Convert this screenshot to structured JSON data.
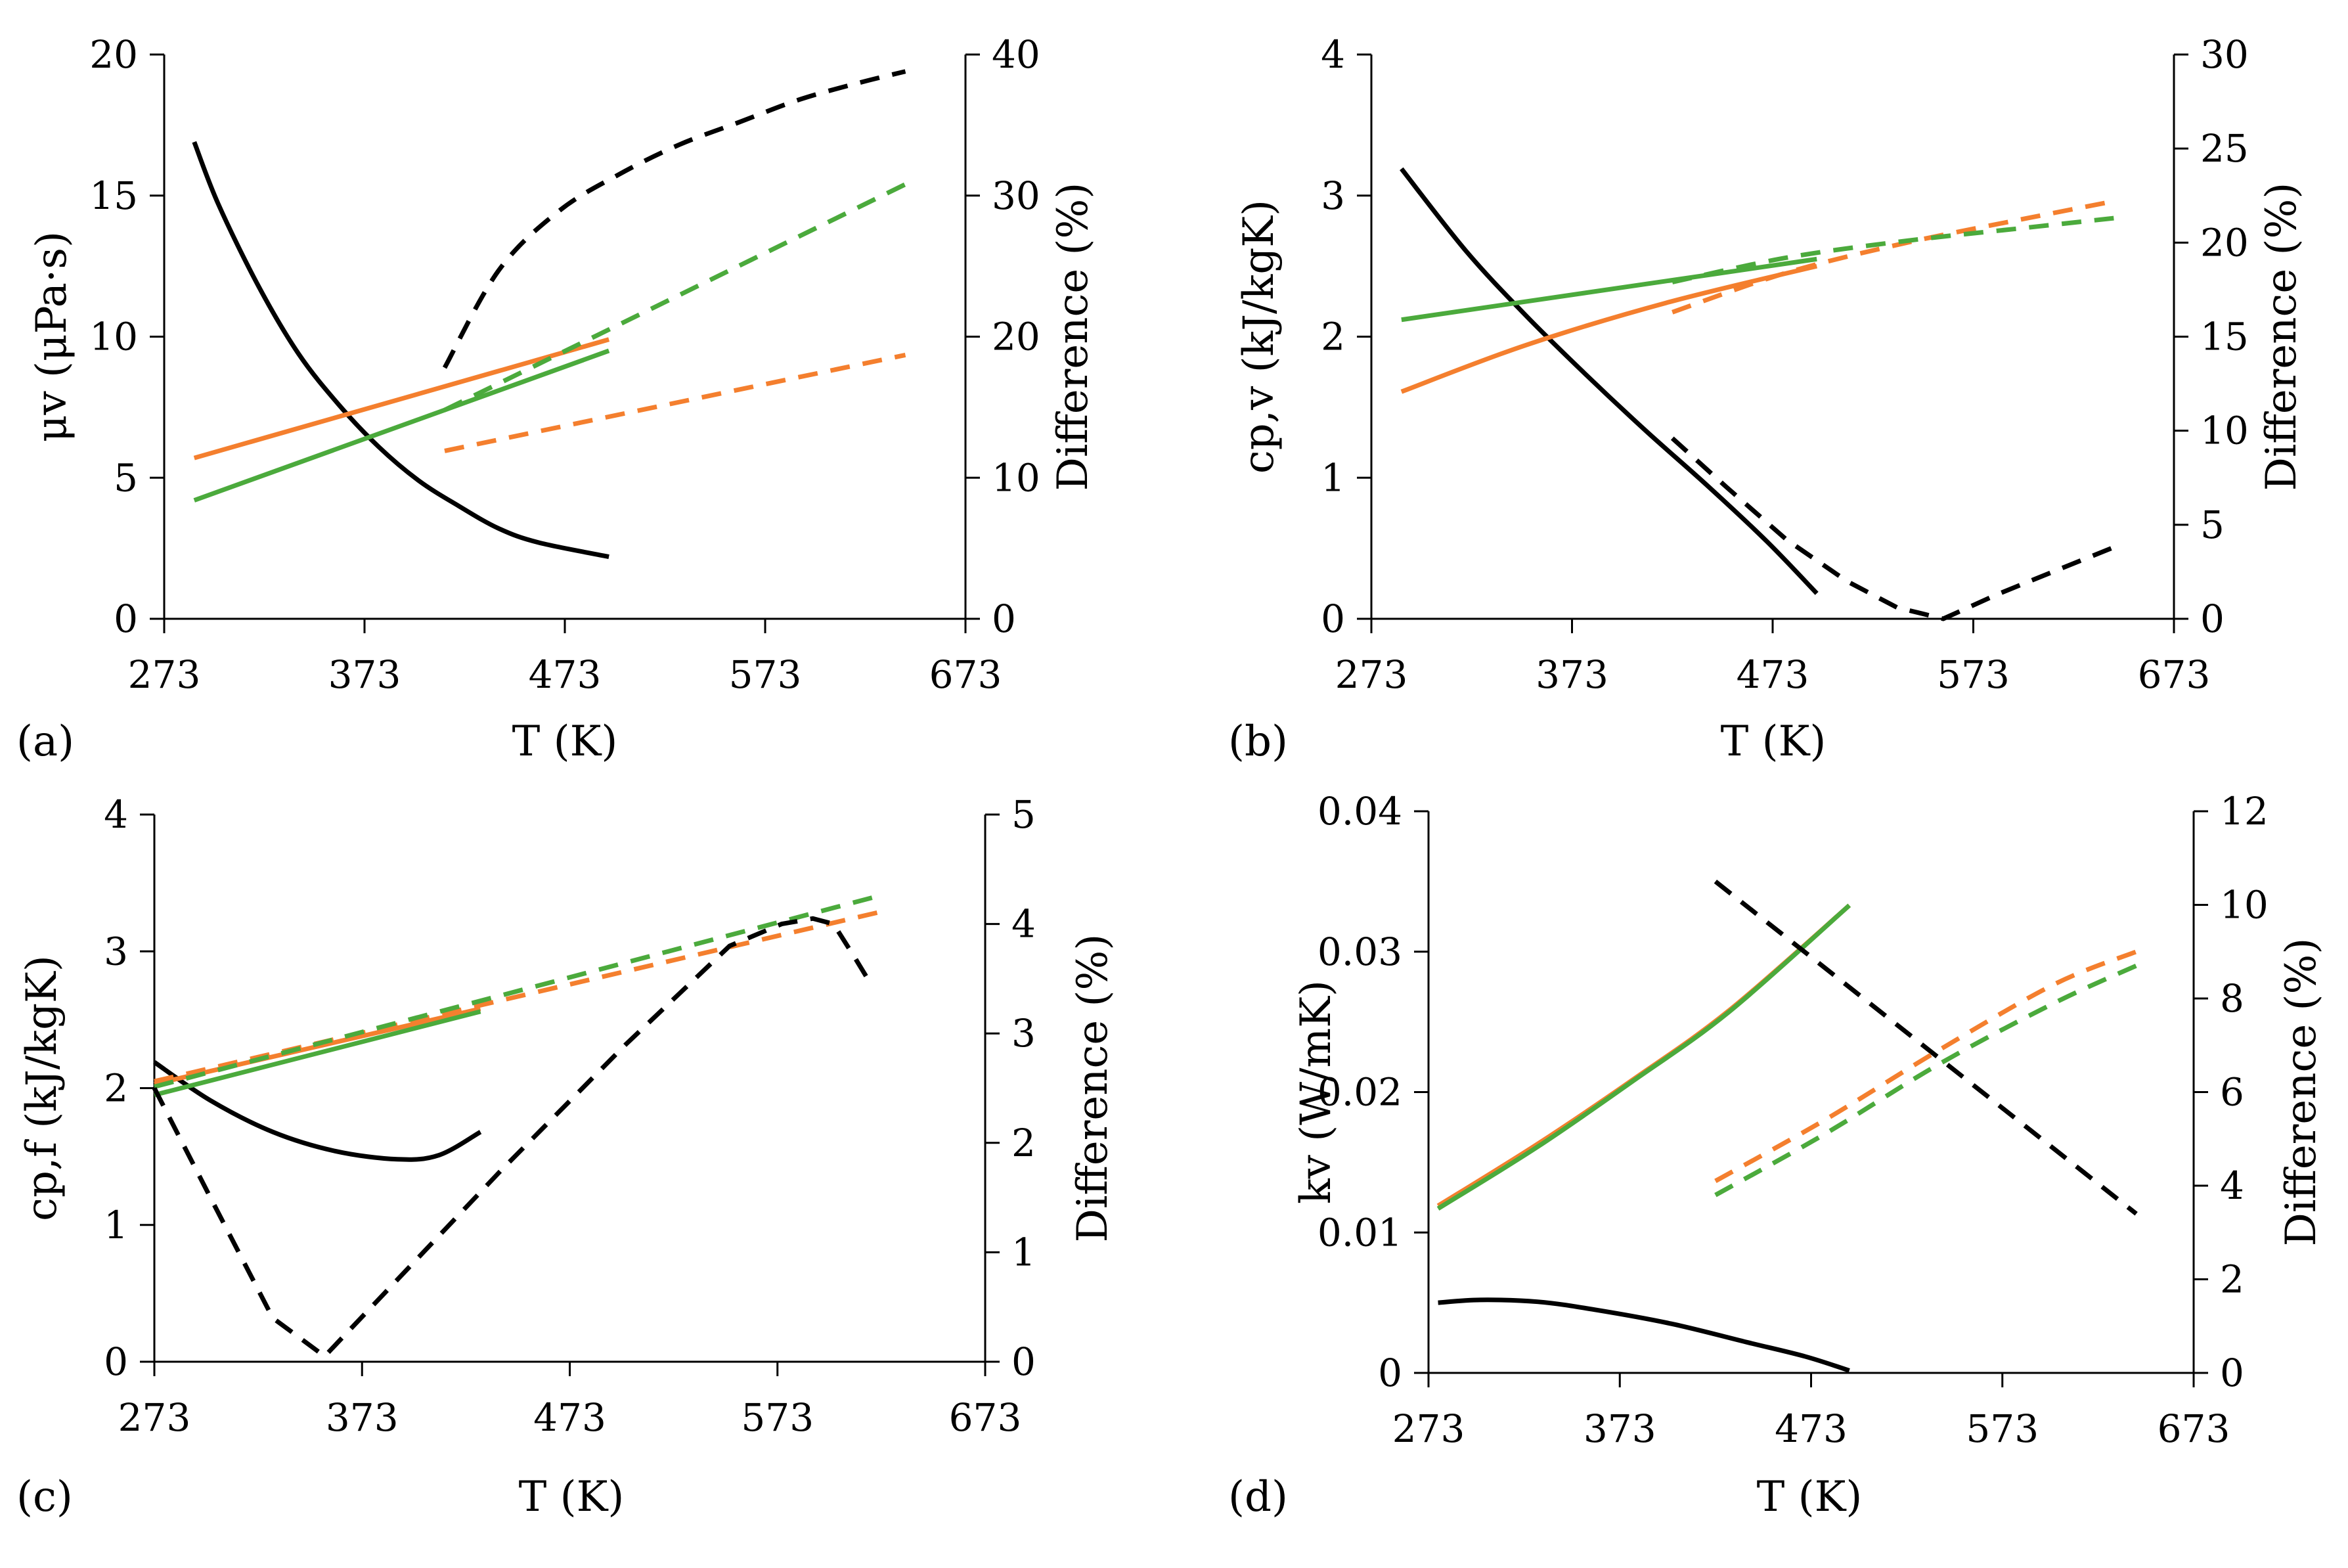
{
  "colors": {
    "black": "#000000",
    "orange": "#F47F2E",
    "green": "#4BAA3C"
  },
  "chart_data": [
    {
      "type": "line",
      "panel": "(a)",
      "panel_letter": "a",
      "xlabel": "T (K)",
      "ylabel": "μv (μPa·s)",
      "y2label": "Difference (%)",
      "xlim": [
        273,
        673
      ],
      "ylim": [
        0,
        20
      ],
      "y2lim": [
        0,
        40
      ],
      "xticks": [
        "273",
        "373",
        "473",
        "573",
        "673"
      ],
      "yticks": [
        "0",
        "5",
        "10",
        "15",
        "20"
      ],
      "y2ticks": [
        "0",
        "10",
        "20",
        "30",
        "40"
      ],
      "series": [
        {
          "name": "black-solid",
          "color": "black",
          "dash": false,
          "axis": "left",
          "curve": true,
          "points": [
            [
              288,
              16.9
            ],
            [
              300,
              14.7
            ],
            [
              320,
              11.8
            ],
            [
              340,
              9.4
            ],
            [
              360,
              7.6
            ],
            [
              380,
              6.1
            ],
            [
              400,
              4.9
            ],
            [
              420,
              4.0
            ],
            [
              440,
              3.2
            ],
            [
              460,
              2.7
            ],
            [
              495,
              2.2
            ]
          ]
        },
        {
          "name": "orange-solid",
          "color": "orange",
          "dash": false,
          "axis": "left",
          "curve": false,
          "points": [
            [
              288,
              5.7
            ],
            [
              495,
              9.9
            ]
          ]
        },
        {
          "name": "green-solid",
          "color": "green",
          "dash": false,
          "axis": "left",
          "curve": false,
          "points": [
            [
              288,
              4.2
            ],
            [
              495,
              9.5
            ]
          ]
        },
        {
          "name": "black-dashed",
          "color": "black",
          "dash": true,
          "axis": "right",
          "curve": true,
          "points": [
            [
              413,
              17.8
            ],
            [
              440,
              24.7
            ],
            [
              470,
              28.9
            ],
            [
              500,
              31.5
            ],
            [
              530,
              33.6
            ],
            [
              560,
              35.2
            ],
            [
              590,
              36.8
            ],
            [
              620,
              38.0
            ],
            [
              643,
              38.8
            ]
          ]
        },
        {
          "name": "green-dashed",
          "color": "green",
          "dash": true,
          "axis": "right",
          "curve": false,
          "points": [
            [
              413,
              14.8
            ],
            [
              643,
              30.8
            ]
          ]
        },
        {
          "name": "orange-dashed",
          "color": "orange",
          "dash": true,
          "axis": "right",
          "curve": false,
          "points": [
            [
              413,
              11.9
            ],
            [
              643,
              18.7
            ]
          ]
        }
      ]
    },
    {
      "type": "line",
      "panel": "(b)",
      "panel_letter": "b",
      "xlabel": "T (K)",
      "ylabel": "cp,v (kJ/kgK)",
      "y2label": "Difference (%)",
      "xlim": [
        273,
        673
      ],
      "ylim": [
        0,
        4
      ],
      "y2lim": [
        0,
        30
      ],
      "xticks": [
        "273",
        "373",
        "473",
        "573",
        "673"
      ],
      "yticks": [
        "0",
        "1",
        "2",
        "3",
        "4"
      ],
      "y2ticks": [
        "0",
        "5",
        "10",
        "15",
        "20",
        "25",
        "30"
      ],
      "series": [
        {
          "name": "black-solid",
          "color": "black",
          "dash": false,
          "axis": "left",
          "curve": true,
          "points": [
            [
              288,
              3.19
            ],
            [
              320,
              2.61
            ],
            [
              350,
              2.15
            ],
            [
              380,
              1.73
            ],
            [
              410,
              1.33
            ],
            [
              440,
              0.95
            ],
            [
              470,
              0.55
            ],
            [
              495,
              0.18
            ]
          ]
        },
        {
          "name": "orange-solid",
          "color": "orange",
          "dash": false,
          "axis": "left",
          "curve": true,
          "points": [
            [
              288,
              1.61
            ],
            [
              350,
              1.94
            ],
            [
              420,
              2.24
            ],
            [
              495,
              2.5
            ]
          ]
        },
        {
          "name": "green-solid",
          "color": "green",
          "dash": false,
          "axis": "left",
          "curve": false,
          "points": [
            [
              288,
              2.12
            ],
            [
              495,
              2.55
            ]
          ]
        },
        {
          "name": "black-dashed",
          "color": "black",
          "dash": true,
          "axis": "right",
          "curve": false,
          "points": [
            [
              423,
              9.6
            ],
            [
              450,
              7.0
            ],
            [
              480,
              4.2
            ],
            [
              510,
              2.0
            ],
            [
              535,
              0.6
            ],
            [
              558,
              0.0
            ],
            [
              585,
              1.3
            ],
            [
              615,
              2.6
            ],
            [
              643,
              3.8
            ]
          ]
        },
        {
          "name": "orange-dashed",
          "color": "orange",
          "dash": true,
          "axis": "right",
          "curve": true,
          "points": [
            [
              423,
              16.3
            ],
            [
              480,
              18.4
            ],
            [
              540,
              20.0
            ],
            [
              600,
              21.3
            ],
            [
              643,
              22.2
            ]
          ]
        },
        {
          "name": "green-dashed",
          "color": "green",
          "dash": true,
          "axis": "right",
          "curve": true,
          "points": [
            [
              423,
              17.9
            ],
            [
              480,
              19.2
            ],
            [
              540,
              20.1
            ],
            [
              600,
              20.8
            ],
            [
              643,
              21.3
            ]
          ]
        }
      ]
    },
    {
      "type": "line",
      "panel": "(c)",
      "panel_letter": "c",
      "xlabel": "T (K)",
      "ylabel": "cp,f (kJ/kgK)",
      "y2label": "Difference (%)",
      "xlim": [
        273,
        673
      ],
      "ylim": [
        0,
        4
      ],
      "y2lim": [
        0,
        5
      ],
      "xticks": [
        "273",
        "373",
        "473",
        "573",
        "673"
      ],
      "yticks": [
        "0",
        "1",
        "2",
        "3",
        "4"
      ],
      "y2ticks": [
        "0",
        "1",
        "2",
        "3",
        "4",
        "5"
      ],
      "series": [
        {
          "name": "black-solid",
          "color": "black",
          "dash": false,
          "axis": "left",
          "curve": true,
          "points": [
            [
              273,
              2.19
            ],
            [
              300,
              1.91
            ],
            [
              330,
              1.68
            ],
            [
              360,
              1.54
            ],
            [
              390,
              1.48
            ],
            [
              410,
              1.51
            ],
            [
              430,
              1.68
            ]
          ]
        },
        {
          "name": "orange-solid",
          "color": "orange",
          "dash": false,
          "axis": "left",
          "curve": false,
          "points": [
            [
              273,
              2.03
            ],
            [
              430,
              2.58
            ]
          ]
        },
        {
          "name": "green-solid",
          "color": "green",
          "dash": false,
          "axis": "left",
          "curve": false,
          "points": [
            [
              273,
              1.95
            ],
            [
              430,
              2.56
            ]
          ]
        },
        {
          "name": "orange-dashed",
          "color": "orange",
          "dash": true,
          "axis": "left",
          "curve": false,
          "points": [
            [
              273,
              2.05
            ],
            [
              623,
              3.29
            ]
          ]
        },
        {
          "name": "green-dashed",
          "color": "green",
          "dash": true,
          "axis": "left",
          "curve": false,
          "points": [
            [
              273,
              2.01
            ],
            [
              623,
              3.41
            ]
          ]
        },
        {
          "name": "black-dashed",
          "color": "black",
          "dash": true,
          "axis": "right",
          "curve": false,
          "points": [
            [
              273,
              2.5
            ],
            [
              300,
              1.5
            ],
            [
              330,
              0.4
            ],
            [
              355,
              0.05
            ],
            [
              380,
              0.55
            ],
            [
              440,
              1.75
            ],
            [
              500,
              2.9
            ],
            [
              550,
              3.8
            ],
            [
              575,
              4.0
            ],
            [
              590,
              4.05
            ],
            [
              600,
              4.0
            ],
            [
              610,
              3.7
            ],
            [
              618,
              3.45
            ]
          ]
        }
      ]
    },
    {
      "type": "line",
      "panel": "(d)",
      "panel_letter": "d",
      "xlabel": "T (K)",
      "ylabel": "kv (W/mK)",
      "y2label": "Difference (%)",
      "xlim": [
        273,
        673
      ],
      "ylim": [
        0,
        0.04
      ],
      "y2lim": [
        0,
        12
      ],
      "xticks": [
        "273",
        "373",
        "473",
        "573",
        "673"
      ],
      "yticks": [
        "0",
        "0.01",
        "0.02",
        "0.03",
        "0.04"
      ],
      "y2ticks": [
        "0",
        "2",
        "4",
        "6",
        "8",
        "10",
        "12"
      ],
      "series": [
        {
          "name": "black-solid",
          "color": "black",
          "dash": false,
          "axis": "right",
          "curve": true,
          "points": [
            [
              278,
              1.5
            ],
            [
              300,
              1.56
            ],
            [
              330,
              1.52
            ],
            [
              360,
              1.35
            ],
            [
              400,
              1.05
            ],
            [
              440,
              0.65
            ],
            [
              470,
              0.35
            ],
            [
              493,
              0.05
            ]
          ]
        },
        {
          "name": "orange-solid",
          "color": "orange",
          "dash": false,
          "axis": "left",
          "curve": true,
          "points": [
            [
              278,
              0.0119
            ],
            [
              330,
              0.0163
            ],
            [
              380,
              0.0209
            ],
            [
              430,
              0.0258
            ],
            [
              493,
              0.0333
            ]
          ]
        },
        {
          "name": "green-solid",
          "color": "green",
          "dash": false,
          "axis": "left",
          "curve": true,
          "points": [
            [
              278,
              0.0117
            ],
            [
              330,
              0.0161
            ],
            [
              380,
              0.0208
            ],
            [
              430,
              0.0257
            ],
            [
              493,
              0.0333
            ]
          ]
        },
        {
          "name": "black-dashed",
          "color": "black",
          "dash": true,
          "axis": "right",
          "curve": false,
          "points": [
            [
              423,
              10.5
            ],
            [
              643,
              3.4
            ]
          ]
        },
        {
          "name": "orange-dashed",
          "color": "orange",
          "dash": true,
          "axis": "right",
          "curve": true,
          "points": [
            [
              423,
              4.1
            ],
            [
              480,
              5.4
            ],
            [
              540,
              6.9
            ],
            [
              600,
              8.3
            ],
            [
              643,
              9.0
            ]
          ]
        },
        {
          "name": "green-dashed",
          "color": "green",
          "dash": true,
          "axis": "right",
          "curve": true,
          "points": [
            [
              423,
              3.8
            ],
            [
              480,
              5.1
            ],
            [
              540,
              6.6
            ],
            [
              600,
              7.9
            ],
            [
              643,
              8.7
            ]
          ]
        }
      ]
    }
  ]
}
